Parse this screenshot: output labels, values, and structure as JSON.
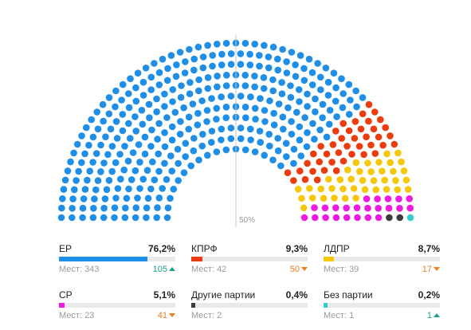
{
  "chart_data": {
    "type": "hemicycle",
    "total_seats": 450,
    "majority_label": "50%",
    "series": [
      {
        "name": "ЕР",
        "seats": 343,
        "color": "#1e8ee6"
      },
      {
        "name": "КПРФ",
        "seats": 42,
        "color": "#ec3c0e"
      },
      {
        "name": "ЛДПР",
        "seats": 39,
        "color": "#f6c80c"
      },
      {
        "name": "СР",
        "seats": 23,
        "color": "#ee1ae0"
      },
      {
        "name": "Другие партии",
        "seats": 2,
        "color": "#3c3c3c"
      },
      {
        "name": "Без партии",
        "seats": 1,
        "color": "#33cccc"
      }
    ]
  },
  "seats_label": "Мест:",
  "parties": [
    {
      "name": "ЕР",
      "percent": "76,2%",
      "seats": "343",
      "change": "105",
      "direction": "up",
      "share": 0.762,
      "color": "#1e8ee6"
    },
    {
      "name": "КПРФ",
      "percent": "9,3%",
      "seats": "42",
      "change": "50",
      "direction": "down",
      "share": 0.093,
      "color": "#ec3c0e"
    },
    {
      "name": "ЛДПР",
      "percent": "8,7%",
      "seats": "39",
      "change": "17",
      "direction": "down",
      "share": 0.087,
      "color": "#f6c80c"
    },
    {
      "name": "СР",
      "percent": "5,1%",
      "seats": "23",
      "change": "41",
      "direction": "down",
      "share": 0.051,
      "color": "#ee1ae0"
    },
    {
      "name": "Другие партии",
      "percent": "0,4%",
      "seats": "2",
      "change": "",
      "direction": "",
      "share": 0.004,
      "color": "#3c3c3c"
    },
    {
      "name": "Без партии",
      "percent": "0,2%",
      "seats": "1",
      "change": "1",
      "direction": "up",
      "share": 0.002,
      "color": "#33cccc"
    }
  ]
}
